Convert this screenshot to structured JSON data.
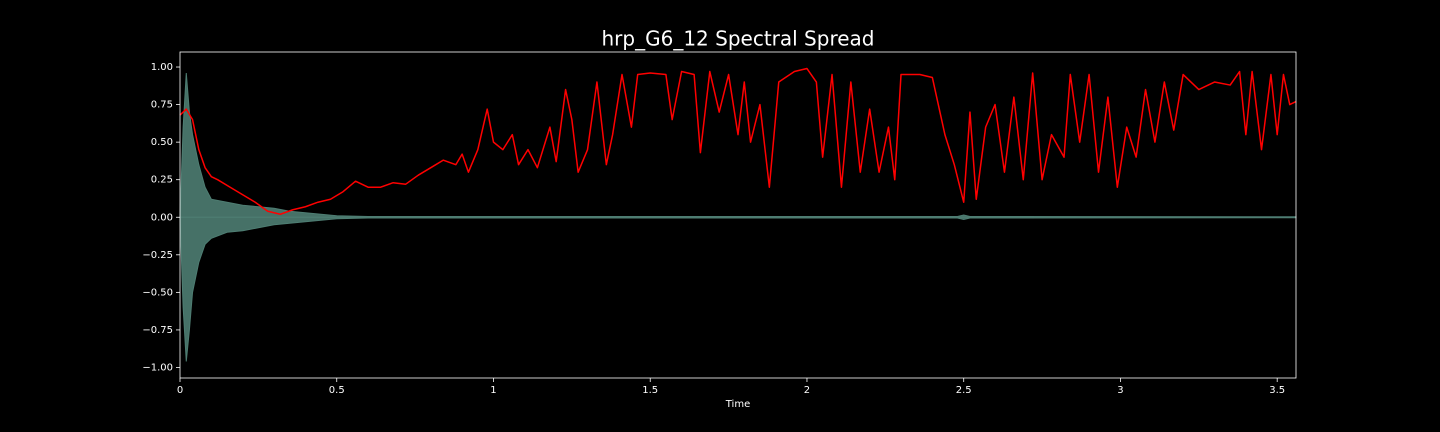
{
  "chart_data": {
    "type": "line",
    "title": "hrp_G6_12 Spectral Spread",
    "xlabel": "Time",
    "xlim": [
      0,
      3.56
    ],
    "ylim": [
      -1.07,
      1.1
    ],
    "xticks": [
      0,
      0.5,
      1,
      1.5,
      2,
      2.5,
      3,
      3.5
    ],
    "yticks": [
      {
        "value": -1,
        "label": "−1.00"
      },
      {
        "value": -0.75,
        "label": "−0.75"
      },
      {
        "value": -0.5,
        "label": "−0.50"
      },
      {
        "value": -0.25,
        "label": "−0.25"
      },
      {
        "value": 0,
        "label": "0.00"
      },
      {
        "value": 0.25,
        "label": "0.25"
      },
      {
        "value": 0.5,
        "label": "0.50"
      },
      {
        "value": 0.75,
        "label": "0.75"
      },
      {
        "value": 1,
        "label": "1.00"
      }
    ],
    "waveform": {
      "color": "#4e7d72",
      "x": [
        0,
        0.01,
        0.02,
        0.03,
        0.04,
        0.06,
        0.08,
        0.1,
        0.15,
        0.2,
        0.25,
        0.3,
        0.35,
        0.4,
        0.45,
        0.5,
        0.6,
        1.0,
        2.48,
        2.5,
        2.52,
        3.56
      ],
      "upper": [
        0,
        0.6,
        0.96,
        0.7,
        0.55,
        0.35,
        0.2,
        0.12,
        0.1,
        0.08,
        0.07,
        0.06,
        0.04,
        0.03,
        0.02,
        0.01,
        0.005,
        0.005,
        0.005,
        0.015,
        0.005,
        0.003
      ],
      "lower": [
        0,
        -0.6,
        -0.96,
        -0.75,
        -0.5,
        -0.3,
        -0.18,
        -0.14,
        -0.1,
        -0.09,
        -0.07,
        -0.05,
        -0.04,
        -0.03,
        -0.02,
        -0.01,
        -0.005,
        -0.005,
        -0.005,
        -0.015,
        -0.005,
        -0.003
      ]
    },
    "series": [
      {
        "color": "#ff0000",
        "x": [
          0,
          0.02,
          0.04,
          0.06,
          0.08,
          0.1,
          0.12,
          0.16,
          0.2,
          0.24,
          0.28,
          0.32,
          0.36,
          0.4,
          0.44,
          0.48,
          0.52,
          0.56,
          0.6,
          0.64,
          0.68,
          0.72,
          0.76,
          0.8,
          0.84,
          0.88,
          0.9,
          0.92,
          0.95,
          0.98,
          1.0,
          1.03,
          1.06,
          1.08,
          1.11,
          1.14,
          1.18,
          1.2,
          1.23,
          1.25,
          1.27,
          1.3,
          1.33,
          1.36,
          1.38,
          1.41,
          1.44,
          1.46,
          1.5,
          1.55,
          1.57,
          1.6,
          1.64,
          1.66,
          1.69,
          1.72,
          1.75,
          1.78,
          1.8,
          1.82,
          1.85,
          1.88,
          1.91,
          1.96,
          2.0,
          2.03,
          2.05,
          2.08,
          2.11,
          2.14,
          2.17,
          2.2,
          2.23,
          2.26,
          2.28,
          2.3,
          2.36,
          2.4,
          2.44,
          2.47,
          2.5,
          2.52,
          2.54,
          2.57,
          2.6,
          2.63,
          2.66,
          2.69,
          2.72,
          2.75,
          2.78,
          2.82,
          2.84,
          2.87,
          2.9,
          2.93,
          2.96,
          2.99,
          3.02,
          3.05,
          3.08,
          3.11,
          3.14,
          3.17,
          3.2,
          3.25,
          3.3,
          3.35,
          3.38,
          3.4,
          3.42,
          3.45,
          3.48,
          3.5,
          3.52,
          3.54,
          3.56
        ],
        "values": [
          0.68,
          0.72,
          0.65,
          0.45,
          0.33,
          0.27,
          0.25,
          0.2,
          0.15,
          0.1,
          0.04,
          0.02,
          0.05,
          0.07,
          0.1,
          0.12,
          0.17,
          0.24,
          0.2,
          0.2,
          0.23,
          0.22,
          0.28,
          0.33,
          0.38,
          0.35,
          0.42,
          0.3,
          0.45,
          0.72,
          0.5,
          0.45,
          0.55,
          0.35,
          0.45,
          0.33,
          0.6,
          0.37,
          0.85,
          0.65,
          0.3,
          0.45,
          0.9,
          0.35,
          0.55,
          0.95,
          0.6,
          0.95,
          0.96,
          0.95,
          0.65,
          0.97,
          0.95,
          0.43,
          0.97,
          0.7,
          0.95,
          0.55,
          0.9,
          0.5,
          0.75,
          0.2,
          0.9,
          0.97,
          0.99,
          0.9,
          0.4,
          0.95,
          0.2,
          0.9,
          0.3,
          0.72,
          0.3,
          0.6,
          0.25,
          0.95,
          0.95,
          0.93,
          0.55,
          0.35,
          0.1,
          0.7,
          0.12,
          0.6,
          0.75,
          0.3,
          0.8,
          0.25,
          0.96,
          0.25,
          0.55,
          0.4,
          0.95,
          0.5,
          0.95,
          0.3,
          0.8,
          0.2,
          0.6,
          0.4,
          0.85,
          0.5,
          0.9,
          0.58,
          0.95,
          0.85,
          0.9,
          0.88,
          0.97,
          0.55,
          0.97,
          0.45,
          0.95,
          0.55,
          0.95,
          0.75,
          0.77
        ]
      }
    ]
  }
}
